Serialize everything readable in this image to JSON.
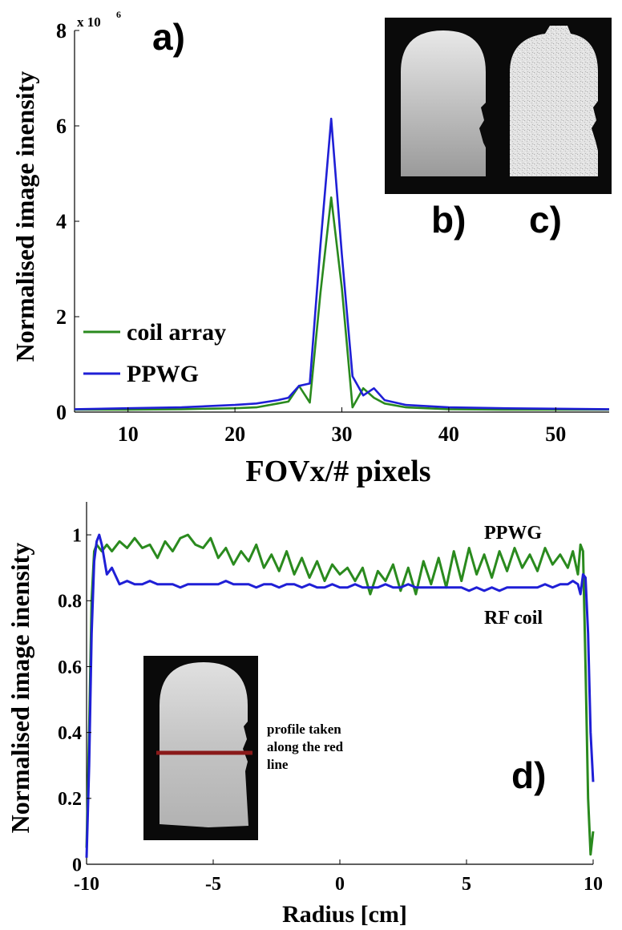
{
  "colors": {
    "green": "#2a8a1e",
    "blue": "#1f1fd6",
    "red_line": "#8a1a1a",
    "axis": "#000000"
  },
  "chart_data": [
    {
      "type": "line",
      "panel_label": "a)",
      "xlabel": "FOVx/# pixels",
      "ylabel": "Normalised image inensity",
      "y_multiplier": "x 10",
      "y_multiplier_exp": "6",
      "xlim": [
        5,
        55
      ],
      "ylim": [
        0,
        8
      ],
      "xticks": [
        10,
        20,
        30,
        40,
        50
      ],
      "yticks": [
        0,
        2,
        4,
        6,
        8
      ],
      "xtick_labels": [
        "10",
        "20",
        "30",
        "40",
        "50"
      ],
      "ytick_labels": [
        "0",
        "2",
        "4",
        "6",
        "8"
      ],
      "legend": {
        "position": "left",
        "entries": [
          "coil array",
          "PPWG"
        ]
      },
      "series": [
        {
          "name": "coil array",
          "color": "#2a8a1e",
          "x": [
            5,
            10,
            15,
            20,
            22,
            24,
            25,
            26,
            27,
            28,
            29,
            30,
            31,
            32,
            33,
            34,
            36,
            40,
            45,
            50,
            55
          ],
          "y": [
            0.05,
            0.05,
            0.06,
            0.08,
            0.1,
            0.18,
            0.22,
            0.55,
            0.2,
            2.5,
            4.5,
            2.6,
            0.1,
            0.5,
            0.3,
            0.18,
            0.1,
            0.06,
            0.05,
            0.05,
            0.05
          ]
        },
        {
          "name": "PPWG",
          "color": "#1f1fd6",
          "x": [
            5,
            10,
            15,
            20,
            22,
            24,
            25,
            26,
            27,
            28,
            29,
            30,
            31,
            32,
            33,
            34,
            36,
            40,
            45,
            50,
            55
          ],
          "y": [
            0.06,
            0.08,
            0.1,
            0.15,
            0.18,
            0.25,
            0.3,
            0.55,
            0.6,
            3.5,
            6.15,
            3.3,
            0.75,
            0.35,
            0.5,
            0.25,
            0.15,
            0.1,
            0.08,
            0.07,
            0.06
          ]
        }
      ],
      "insets": [
        {
          "label": "b)",
          "description": "coil array image"
        },
        {
          "label": "c)",
          "description": "PPWG image"
        }
      ]
    },
    {
      "type": "line",
      "panel_label": "d)",
      "xlabel": "Radius [cm]",
      "ylabel": "Normalised image inensity",
      "xlim": [
        -10,
        10
      ],
      "ylim": [
        0,
        1.1
      ],
      "xticks": [
        -10,
        -5,
        0,
        5,
        10
      ],
      "yticks": [
        0,
        0.2,
        0.4,
        0.6,
        0.8,
        1
      ],
      "xtick_labels": [
        "-10",
        "-5",
        "0",
        "5",
        "10"
      ],
      "ytick_labels": [
        "0",
        "0.2",
        "0.4",
        "0.6",
        "0.8",
        "1"
      ],
      "annotations": [
        "PPWG",
        "RF coil",
        "profile taken",
        "along the red",
        "line"
      ],
      "series": [
        {
          "name": "PPWG",
          "color": "#2a8a1e",
          "x": [
            -10.0,
            -9.9,
            -9.8,
            -9.7,
            -9.6,
            -9.5,
            -9.4,
            -9.2,
            -9.0,
            -8.7,
            -8.4,
            -8.1,
            -7.8,
            -7.5,
            -7.2,
            -6.9,
            -6.6,
            -6.3,
            -6.0,
            -5.7,
            -5.4,
            -5.1,
            -4.8,
            -4.5,
            -4.2,
            -3.9,
            -3.6,
            -3.3,
            -3.0,
            -2.7,
            -2.4,
            -2.1,
            -1.8,
            -1.5,
            -1.2,
            -0.9,
            -0.6,
            -0.3,
            0.0,
            0.3,
            0.6,
            0.9,
            1.2,
            1.5,
            1.8,
            2.1,
            2.4,
            2.7,
            3.0,
            3.3,
            3.6,
            3.9,
            4.2,
            4.5,
            4.8,
            5.1,
            5.4,
            5.7,
            6.0,
            6.3,
            6.6,
            6.9,
            7.2,
            7.5,
            7.8,
            8.1,
            8.4,
            8.7,
            9.0,
            9.2,
            9.4,
            9.5,
            9.6,
            9.7,
            9.8,
            9.9,
            10.0
          ],
          "y": [
            0.05,
            0.4,
            0.8,
            0.95,
            0.97,
            0.96,
            0.95,
            0.97,
            0.95,
            0.98,
            0.96,
            0.99,
            0.96,
            0.97,
            0.93,
            0.98,
            0.95,
            0.99,
            1.0,
            0.97,
            0.96,
            0.99,
            0.93,
            0.96,
            0.91,
            0.95,
            0.92,
            0.97,
            0.9,
            0.94,
            0.89,
            0.95,
            0.88,
            0.93,
            0.87,
            0.92,
            0.86,
            0.91,
            0.88,
            0.9,
            0.86,
            0.9,
            0.82,
            0.89,
            0.86,
            0.91,
            0.83,
            0.9,
            0.82,
            0.92,
            0.85,
            0.93,
            0.84,
            0.95,
            0.86,
            0.96,
            0.88,
            0.94,
            0.87,
            0.95,
            0.89,
            0.96,
            0.9,
            0.94,
            0.89,
            0.96,
            0.91,
            0.94,
            0.9,
            0.95,
            0.88,
            0.97,
            0.95,
            0.6,
            0.2,
            0.03,
            0.1
          ]
        },
        {
          "name": "RF coil",
          "color": "#1f1fd6",
          "x": [
            -10.0,
            -9.9,
            -9.8,
            -9.7,
            -9.6,
            -9.5,
            -9.4,
            -9.2,
            -9.0,
            -8.7,
            -8.4,
            -8.1,
            -7.8,
            -7.5,
            -7.2,
            -6.9,
            -6.6,
            -6.3,
            -6.0,
            -5.7,
            -5.4,
            -5.1,
            -4.8,
            -4.5,
            -4.2,
            -3.9,
            -3.6,
            -3.3,
            -3.0,
            -2.7,
            -2.4,
            -2.1,
            -1.8,
            -1.5,
            -1.2,
            -0.9,
            -0.6,
            -0.3,
            0.0,
            0.3,
            0.6,
            0.9,
            1.2,
            1.5,
            1.8,
            2.1,
            2.4,
            2.7,
            3.0,
            3.3,
            3.6,
            3.9,
            4.2,
            4.5,
            4.8,
            5.1,
            5.4,
            5.7,
            6.0,
            6.3,
            6.6,
            6.9,
            7.2,
            7.5,
            7.8,
            8.1,
            8.4,
            8.7,
            9.0,
            9.2,
            9.4,
            9.5,
            9.6,
            9.7,
            9.8,
            9.9,
            10.0
          ],
          "y": [
            0.02,
            0.3,
            0.7,
            0.92,
            0.98,
            1.0,
            0.97,
            0.88,
            0.9,
            0.85,
            0.86,
            0.85,
            0.85,
            0.86,
            0.85,
            0.85,
            0.85,
            0.84,
            0.85,
            0.85,
            0.85,
            0.85,
            0.85,
            0.86,
            0.85,
            0.85,
            0.85,
            0.84,
            0.85,
            0.85,
            0.84,
            0.85,
            0.85,
            0.84,
            0.85,
            0.84,
            0.84,
            0.85,
            0.84,
            0.84,
            0.85,
            0.84,
            0.84,
            0.84,
            0.85,
            0.84,
            0.84,
            0.85,
            0.84,
            0.84,
            0.84,
            0.84,
            0.84,
            0.84,
            0.84,
            0.83,
            0.84,
            0.83,
            0.84,
            0.83,
            0.84,
            0.84,
            0.84,
            0.84,
            0.84,
            0.85,
            0.84,
            0.85,
            0.85,
            0.86,
            0.85,
            0.82,
            0.88,
            0.87,
            0.7,
            0.4,
            0.25
          ]
        }
      ]
    }
  ]
}
